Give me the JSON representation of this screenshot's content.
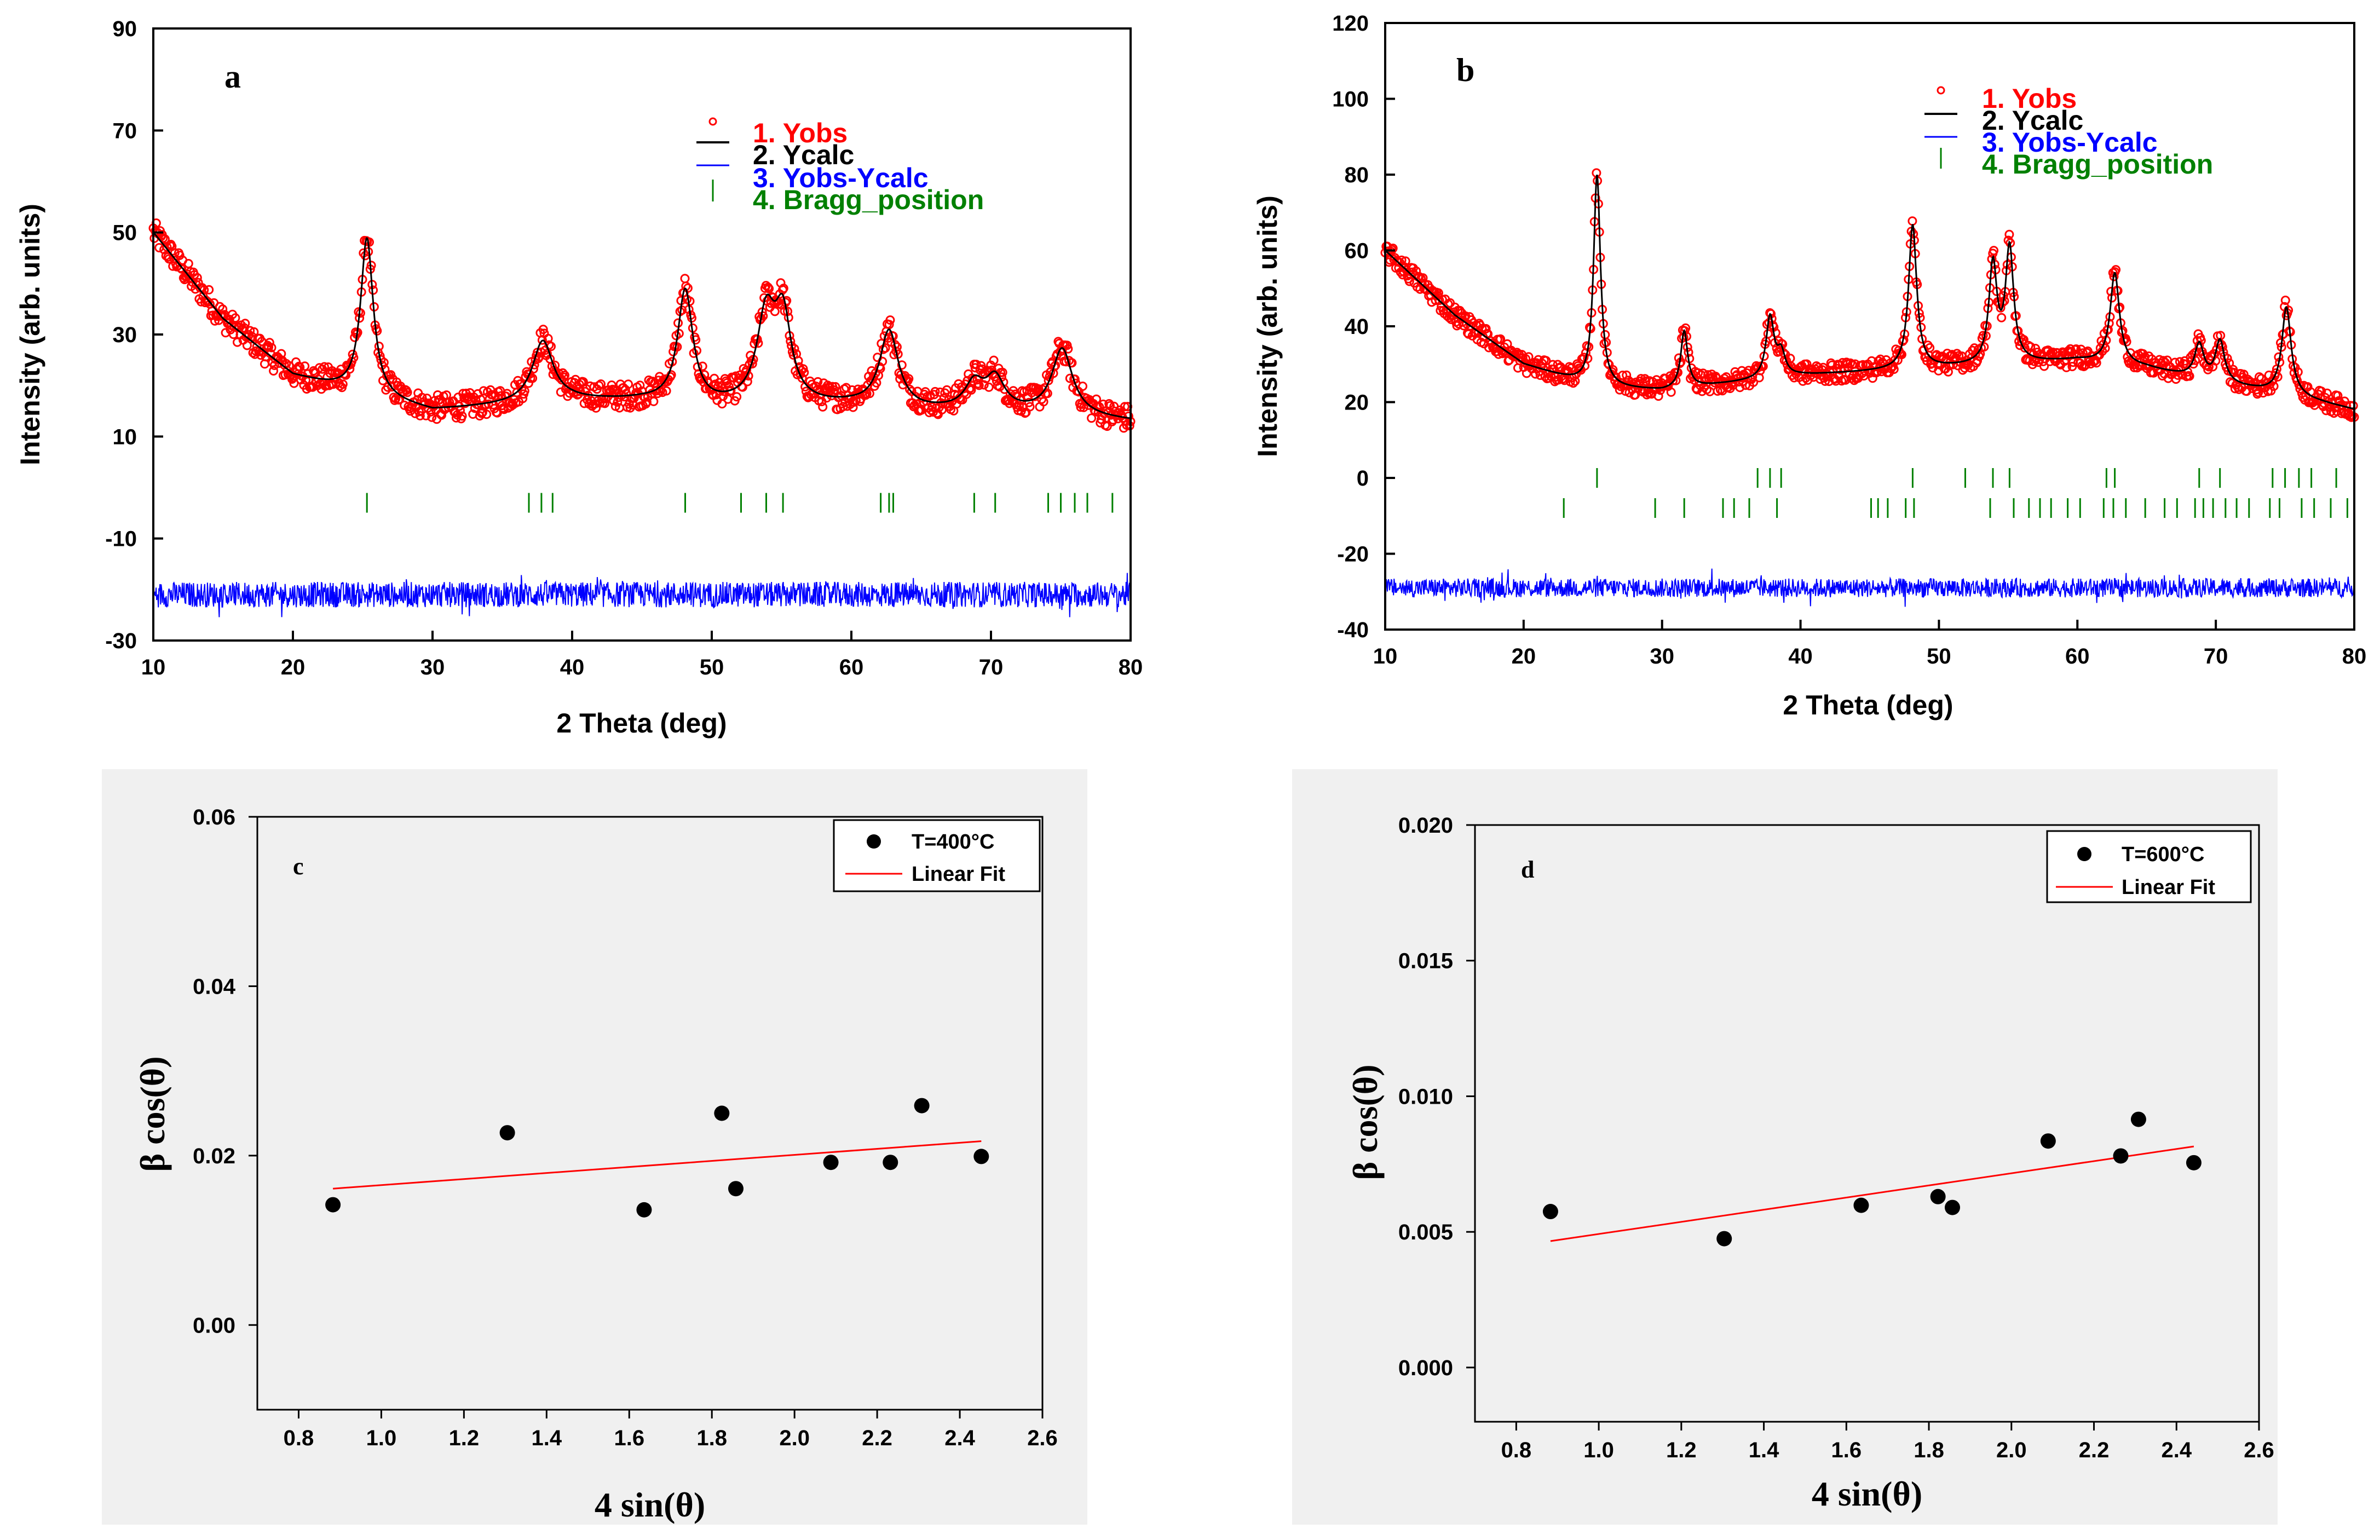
{
  "chart_data": [
    {
      "id": "a",
      "type": "scatter",
      "panel_label": "a",
      "xlabel": "2 Theta (deg)",
      "ylabel": "Intensity (arb. units)",
      "xlim": [
        10,
        80
      ],
      "ylim": [
        -30,
        90
      ],
      "xticks": [
        10,
        20,
        30,
        40,
        50,
        60,
        70,
        80
      ],
      "yticks": [
        90,
        70,
        50,
        30,
        10,
        -10,
        -30
      ],
      "background": {
        "x": [
          10,
          15,
          20,
          25,
          30,
          35,
          40,
          45,
          50,
          55,
          60,
          65,
          70,
          75,
          80
        ],
        "y": [
          50,
          33,
          22,
          18,
          15,
          16,
          17,
          17,
          16,
          16,
          16,
          15,
          15,
          14,
          13
        ]
      },
      "peaks": [
        {
          "pos": 25.3,
          "height": 31,
          "width": 0.55
        },
        {
          "pos": 37.9,
          "height": 12,
          "width": 0.9
        },
        {
          "pos": 48.1,
          "height": 22,
          "width": 0.65
        },
        {
          "pos": 53.9,
          "height": 17,
          "width": 0.8
        },
        {
          "pos": 55.1,
          "height": 16,
          "width": 0.7
        },
        {
          "pos": 62.7,
          "height": 15,
          "width": 0.8
        },
        {
          "pos": 68.8,
          "height": 5,
          "width": 0.8
        },
        {
          "pos": 70.3,
          "height": 6,
          "width": 0.8
        },
        {
          "pos": 75.1,
          "height": 13,
          "width": 0.9
        }
      ],
      "bragg_y": -3,
      "bragg_rows": [
        [
          25.3,
          36.9,
          37.8,
          38.6,
          48.1,
          52.1,
          53.9,
          55.1,
          62.1,
          62.7,
          63.0,
          68.8,
          70.3,
          74.1,
          75.0,
          76.0,
          76.9,
          78.7
        ]
      ],
      "diff_baseline": -21,
      "series_style": {
        "Yobs": "#ff0000",
        "Ycalc": "#000000",
        "Yobs-Ycalc": "#0000ff",
        "Bragg_position": "#008000"
      },
      "legend": [
        "1. Yobs",
        "2. Ycalc",
        "3. Yobs-Ycalc",
        "4. Bragg_position"
      ]
    },
    {
      "id": "b",
      "type": "scatter",
      "panel_label": "b",
      "xlabel": "2 Theta (deg)",
      "ylabel": "Intensity (arb. units)",
      "xlim": [
        10,
        80
      ],
      "ylim": [
        -40,
        120
      ],
      "xticks": [
        10,
        20,
        30,
        40,
        50,
        60,
        70,
        80
      ],
      "yticks": [
        120,
        100,
        80,
        60,
        40,
        20,
        0,
        -20,
        -40
      ],
      "background": {
        "x": [
          10,
          15,
          20,
          25,
          30,
          35,
          40,
          45,
          50,
          55,
          60,
          65,
          70,
          75,
          80
        ],
        "y": [
          60,
          43,
          30,
          24,
          23,
          25,
          27,
          28,
          29,
          30,
          31,
          29,
          25,
          22,
          18
        ]
      },
      "peaks": [
        {
          "pos": 25.3,
          "height": 56,
          "width": 0.3
        },
        {
          "pos": 31.6,
          "height": 15,
          "width": 0.3
        },
        {
          "pos": 37.8,
          "height": 16,
          "width": 0.35
        },
        {
          "pos": 38.6,
          "height": 6,
          "width": 0.35
        },
        {
          "pos": 48.1,
          "height": 38,
          "width": 0.35
        },
        {
          "pos": 53.9,
          "height": 26,
          "width": 0.35
        },
        {
          "pos": 55.1,
          "height": 30,
          "width": 0.35
        },
        {
          "pos": 62.7,
          "height": 24,
          "width": 0.4
        },
        {
          "pos": 68.8,
          "height": 9,
          "width": 0.4
        },
        {
          "pos": 70.3,
          "height": 11,
          "width": 0.4
        },
        {
          "pos": 75.1,
          "height": 23,
          "width": 0.4
        }
      ],
      "bragg_y": 0,
      "bragg_rows": [
        [
          25.3,
          36.9,
          37.8,
          38.6,
          48.1,
          51.9,
          53.9,
          55.1,
          62.1,
          62.7,
          68.8,
          70.3,
          74.1,
          75.0,
          76.0,
          76.9,
          78.7
        ],
        [
          22.9,
          29.5,
          31.6,
          34.4,
          35.2,
          36.3,
          38.3,
          45.1,
          45.6,
          46.3,
          47.6,
          48.2,
          53.7,
          55.4,
          56.5,
          57.3,
          58.1,
          59.3,
          60.2,
          61.9,
          62.6,
          63.5,
          64.9,
          66.3,
          67.2,
          68.5,
          69.1,
          69.8,
          70.7,
          71.5,
          72.4,
          73.9,
          74.6,
          76.2,
          77.1,
          78.3,
          79.5
        ]
      ],
      "diff_baseline": -29,
      "series_style": {
        "Yobs": "#ff0000",
        "Ycalc": "#000000",
        "Yobs-Ycalc": "#0000ff",
        "Bragg_position": "#008000"
      },
      "legend": [
        "1. Yobs",
        "2. Ycalc",
        "3. Yobs-Ycalc",
        "4. Bragg_position"
      ]
    },
    {
      "id": "c",
      "type": "scatter",
      "panel_label": "c",
      "xlabel": "4 sin(θ)",
      "ylabel": "β cos(θ)",
      "xlim": [
        0.7,
        2.6
      ],
      "ylim": [
        -0.01,
        0.06
      ],
      "xticks": [
        "0.8",
        "1.0",
        "1.2",
        "1.4",
        "1.6",
        "1.8",
        "2.0",
        "2.2",
        "2.4",
        "2.6"
      ],
      "yticks": [
        "0.06",
        "0.04",
        "0.02",
        "0.00"
      ],
      "x": [
        0.883,
        1.305,
        1.636,
        1.824,
        1.858,
        2.088,
        2.232,
        2.308,
        2.452
      ],
      "y": [
        0.0142,
        0.0227,
        0.0136,
        0.025,
        0.0161,
        0.0192,
        0.0192,
        0.0259,
        0.0199
      ],
      "fit": {
        "x": [
          0.883,
          2.452
        ],
        "y": [
          0.0161,
          0.0217
        ]
      },
      "marker_color": "#000000",
      "fit_color": "#ff0000",
      "legend": [
        "T=400°C",
        "Linear Fit"
      ]
    },
    {
      "id": "d",
      "type": "scatter",
      "panel_label": "d",
      "xlabel": "4 sin(θ)",
      "ylabel": "β cos(θ)",
      "xlim": [
        0.7,
        2.6
      ],
      "ylim": [
        -0.002,
        0.02
      ],
      "xticks": [
        "0.8",
        "1.0",
        "1.2",
        "1.4",
        "1.6",
        "1.8",
        "2.0",
        "2.2",
        "2.4",
        "2.6"
      ],
      "yticks": [
        "0.020",
        "0.015",
        "0.010",
        "0.005",
        "0.000"
      ],
      "x": [
        0.883,
        1.304,
        1.636,
        1.822,
        1.857,
        2.089,
        2.265,
        2.308,
        2.442
      ],
      "y": [
        0.00575,
        0.00475,
        0.00598,
        0.0063,
        0.0059,
        0.00835,
        0.0078,
        0.00915,
        0.00755
      ],
      "fit": {
        "x": [
          0.883,
          2.442
        ],
        "y": [
          0.00466,
          0.00815
        ]
      },
      "marker_color": "#000000",
      "fit_color": "#ff0000",
      "legend": [
        "T=600°C",
        "Linear Fit"
      ]
    }
  ]
}
